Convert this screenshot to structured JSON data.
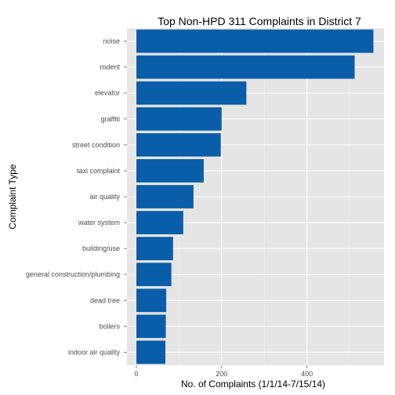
{
  "chart_data": {
    "type": "bar",
    "orientation": "horizontal",
    "title": "Top Non-HPD 311 Complaints in District 7",
    "xlabel": "No. of Complaints (1/1/14-7/15/14)",
    "ylabel": "Complaint Type",
    "categories": [
      "noise",
      "rodent",
      "elevator",
      "graffiti",
      "street condition",
      "taxi complaint",
      "air quality",
      "water system",
      "building/use",
      "general construction/plumbing",
      "dead tree",
      "boilers",
      "indoor air quality"
    ],
    "values": [
      556,
      512,
      258,
      200,
      198,
      158,
      134,
      110,
      86,
      82,
      70,
      69,
      68
    ],
    "xlim": [
      0,
      580
    ],
    "xticks": [
      0,
      200,
      400
    ],
    "grid": true,
    "legend": "none",
    "colors": {
      "bar": "#0a5ea9",
      "panel": "#e5e5e5",
      "grid_major": "#ffffff",
      "grid_minor": "#f2f2f2",
      "tick_text": "#4d4d4d"
    }
  }
}
